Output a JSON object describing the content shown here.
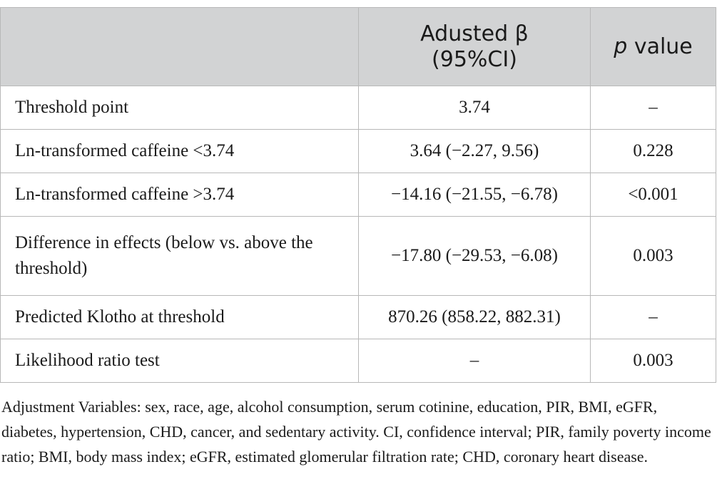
{
  "table": {
    "headers": {
      "col1": "",
      "col2": "Adusted β (95%CI)",
      "col3_italic": "p",
      "col3_rest": " value"
    },
    "rows": [
      {
        "label": "Threshold point",
        "beta": "3.74",
        "p": "–"
      },
      {
        "label": "Ln-transformed caffeine <3.74",
        "beta": "3.64 (−2.27, 9.56)",
        "p": "0.228"
      },
      {
        "label": "Ln-transformed caffeine >3.74",
        "beta": "−14.16 (−21.55, −6.78)",
        "p": "<0.001"
      },
      {
        "label": "Difference in effects (below vs. above the threshold)",
        "beta": "−17.80 (−29.53, −6.08)",
        "p": "0.003"
      },
      {
        "label": "Predicted Klotho at threshold",
        "beta": "870.26 (858.22, 882.31)",
        "p": "–"
      },
      {
        "label": "Likelihood ratio test",
        "beta": "–",
        "p": "0.003"
      }
    ]
  },
  "footnote": "Adjustment Variables: sex, race, age, alcohol consumption, serum cotinine, education, PIR, BMI, eGFR, diabetes, hypertension, CHD, cancer, and sedentary activity. CI, confidence interval; PIR, family poverty income ratio; BMI, body mass index; eGFR, estimated glomerular filtration rate; CHD, coronary heart disease."
}
